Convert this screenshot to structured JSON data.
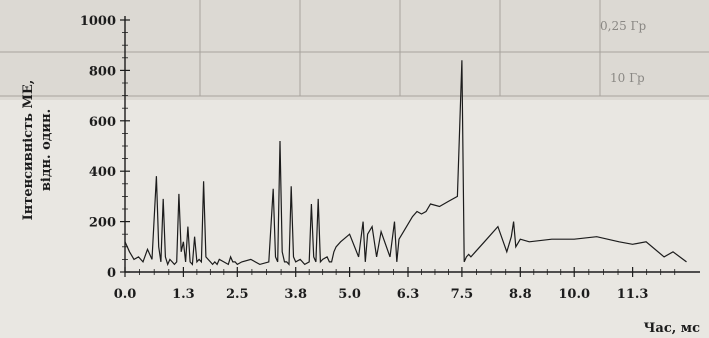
{
  "chart_data": {
    "type": "line",
    "title": "",
    "xlabel": "Час, мс",
    "ylabel_line1": "Інтенсивність МЕ,",
    "ylabel_line2": "відн. один.",
    "xlim": [
      0,
      12.8
    ],
    "ylim": [
      0,
      1000
    ],
    "x_ticks": [
      {
        "v": 0.0,
        "label": "0.0"
      },
      {
        "v": 1.3,
        "label": "1.3"
      },
      {
        "v": 2.5,
        "label": "2.5"
      },
      {
        "v": 3.8,
        "label": "3.8"
      },
      {
        "v": 5.0,
        "label": "5.0"
      },
      {
        "v": 6.3,
        "label": "6.3"
      },
      {
        "v": 7.5,
        "label": "7.5"
      },
      {
        "v": 8.8,
        "label": "8.8"
      },
      {
        "v": 10.0,
        "label": "10.0"
      },
      {
        "v": 11.3,
        "label": "11.3"
      }
    ],
    "y_ticks": [
      {
        "v": 0,
        "label": "0"
      },
      {
        "v": 200,
        "label": "200"
      },
      {
        "v": 400,
        "label": "400"
      },
      {
        "v": 600,
        "label": "600"
      },
      {
        "v": 800,
        "label": "800"
      },
      {
        "v": 1000,
        "label": "1000"
      }
    ],
    "grid": false,
    "line_color": "#1c1c1c",
    "series": [
      {
        "x": [
          0.0,
          0.1,
          0.2,
          0.3,
          0.4,
          0.5,
          0.6,
          0.7,
          0.75,
          0.8,
          0.85,
          0.9,
          0.95,
          1.0,
          1.05,
          1.1,
          1.15,
          1.2,
          1.25,
          1.3,
          1.35,
          1.4,
          1.45,
          1.5,
          1.55,
          1.6,
          1.65,
          1.7,
          1.75,
          1.8,
          1.9,
          1.95,
          2.0,
          2.05,
          2.1,
          2.2,
          2.3,
          2.35,
          2.4,
          2.45,
          2.5,
          2.6,
          2.8,
          3.0,
          3.2,
          3.3,
          3.35,
          3.4,
          3.45,
          3.5,
          3.55,
          3.6,
          3.65,
          3.7,
          3.75,
          3.8,
          3.9,
          4.0,
          4.1,
          4.15,
          4.2,
          4.25,
          4.3,
          4.35,
          4.4,
          4.5,
          4.55,
          4.6,
          4.65,
          4.7,
          4.8,
          5.0,
          5.2,
          5.3,
          5.35,
          5.4,
          5.5,
          5.6,
          5.7,
          5.9,
          6.0,
          6.05,
          6.1,
          6.2,
          6.4,
          6.5,
          6.6,
          6.7,
          6.8,
          7.0,
          7.2,
          7.4,
          7.5,
          7.55,
          7.6,
          7.65,
          7.7,
          7.8,
          8.0,
          8.3,
          8.5,
          8.6,
          8.65,
          8.7,
          8.8,
          9.0,
          9.5,
          10.0,
          10.5,
          11.0,
          11.3,
          11.6,
          12.0,
          12.2,
          12.5
        ],
        "y": [
          120,
          80,
          50,
          60,
          40,
          90,
          50,
          380,
          100,
          40,
          290,
          60,
          30,
          50,
          40,
          30,
          40,
          310,
          80,
          120,
          40,
          180,
          40,
          30,
          140,
          40,
          50,
          40,
          360,
          60,
          40,
          30,
          40,
          30,
          50,
          40,
          30,
          60,
          40,
          40,
          30,
          40,
          50,
          30,
          40,
          330,
          60,
          40,
          520,
          80,
          40,
          40,
          30,
          340,
          60,
          40,
          50,
          30,
          40,
          270,
          60,
          40,
          290,
          40,
          50,
          60,
          40,
          40,
          80,
          100,
          120,
          150,
          60,
          200,
          40,
          150,
          180,
          60,
          160,
          60,
          200,
          40,
          130,
          160,
          220,
          240,
          230,
          240,
          270,
          260,
          280,
          300,
          840,
          40,
          60,
          70,
          60,
          80,
          120,
          180,
          80,
          140,
          200,
          100,
          130,
          120,
          130,
          130,
          140,
          120,
          110,
          120,
          60,
          80,
          40
        ]
      }
    ],
    "bg_table_row1": "0,25 Гр",
    "bg_table_row2": "10 Гр"
  }
}
